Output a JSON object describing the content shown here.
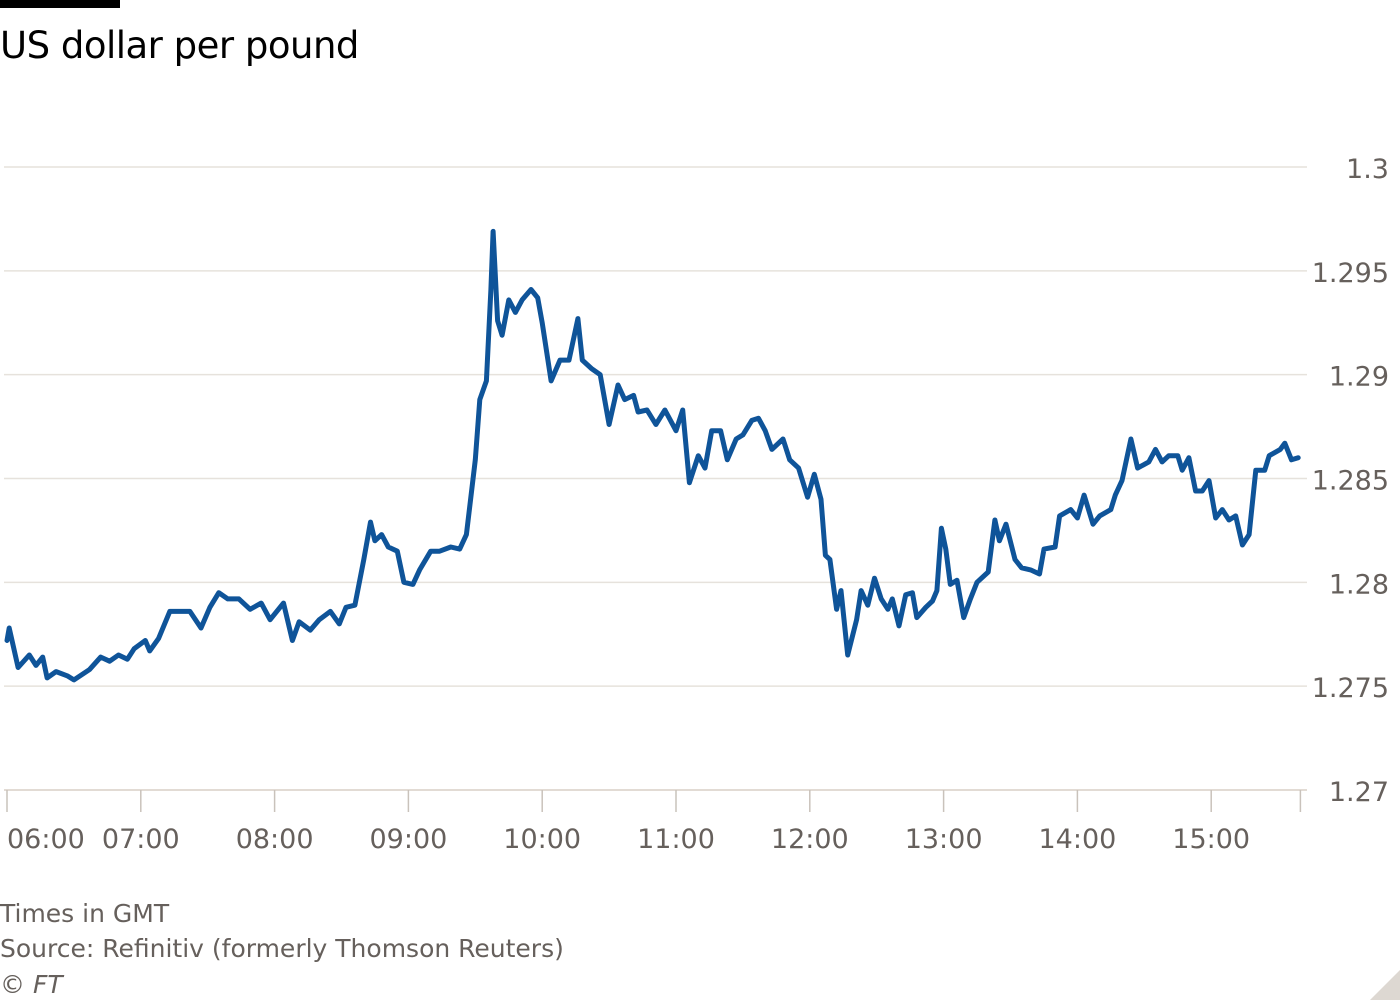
{
  "title": "US dollar per pound",
  "footer": {
    "note": "Times in GMT",
    "source": "Source: Refinitiv (formerly Thomson Reuters)",
    "copyright": "© FT"
  },
  "colors": {
    "line": "#0f5499",
    "grid": "#e6e2dc",
    "text": "#66605c"
  },
  "chart_data": {
    "type": "line",
    "title": "US dollar per pound",
    "xlabel": "Times in GMT",
    "ylabel": "",
    "ylim": [
      1.27,
      1.3
    ],
    "y_ticks": [
      "1.27",
      "1.275",
      "1.28",
      "1.285",
      "1.29",
      "1.295",
      "1.3"
    ],
    "y_tick_values": [
      1.27,
      1.275,
      1.28,
      1.285,
      1.29,
      1.295,
      1.3
    ],
    "x_unit": "minutes after 06:00 GMT",
    "xlim": [
      0,
      580
    ],
    "x_ticks": [
      "06:00",
      "07:00",
      "08:00",
      "09:00",
      "10:00",
      "11:00",
      "12:00",
      "13:00",
      "14:00",
      "15:00"
    ],
    "x_tick_values": [
      0,
      60,
      120,
      180,
      240,
      300,
      360,
      420,
      480,
      540
    ],
    "grid": true,
    "series": [
      {
        "name": "USD per GBP",
        "x": [
          0,
          1,
          5,
          10,
          13,
          16,
          18,
          22,
          27,
          30,
          37,
          42,
          46,
          50,
          54,
          57,
          62,
          64,
          68,
          73,
          78,
          82,
          87,
          91,
          95,
          99,
          104,
          109,
          114,
          118,
          124,
          128,
          131,
          136,
          140,
          145,
          149,
          152,
          156,
          160,
          163,
          165,
          168,
          171,
          175,
          178,
          182,
          185,
          190,
          194,
          199,
          203,
          206,
          210,
          212,
          215,
          217,
          218,
          220,
          222,
          225,
          228,
          231,
          235,
          238,
          240,
          244,
          248,
          252,
          256,
          258,
          262,
          266,
          270,
          274,
          277,
          281,
          283,
          287,
          291,
          295,
          300,
          303,
          306,
          310,
          313,
          316,
          320,
          323,
          327,
          330,
          334,
          337,
          340,
          343,
          348,
          351,
          355,
          359,
          362,
          365,
          367,
          369,
          372,
          374,
          377,
          381,
          383,
          386,
          389,
          392,
          395,
          397,
          400,
          403,
          406,
          408,
          412,
          415,
          417,
          419,
          421,
          423,
          426,
          429,
          432,
          435,
          440,
          443,
          445,
          448,
          452,
          455,
          459,
          463,
          465,
          470,
          472,
          477,
          480,
          483,
          487,
          490,
          495,
          497,
          500,
          504,
          507,
          512,
          515,
          518,
          521,
          525,
          527,
          530,
          533,
          536,
          539,
          542,
          545,
          548,
          551,
          554,
          557,
          560,
          564,
          566,
          571,
          573,
          576,
          579
        ],
        "values": [
          1.2772,
          1.2778,
          1.2759,
          1.2765,
          1.276,
          1.2764,
          1.2754,
          1.2757,
          1.2755,
          1.2753,
          1.2758,
          1.2764,
          1.2762,
          1.2765,
          1.2763,
          1.2768,
          1.2772,
          1.2767,
          1.2773,
          1.2786,
          1.2786,
          1.2786,
          1.2778,
          1.2788,
          1.2795,
          1.2792,
          1.2792,
          1.2787,
          1.279,
          1.2782,
          1.279,
          1.2772,
          1.2781,
          1.2777,
          1.2782,
          1.2786,
          1.278,
          1.2788,
          1.2789,
          1.2811,
          1.2829,
          1.282,
          1.2823,
          1.2817,
          1.2815,
          1.28,
          1.2799,
          1.2806,
          1.2815,
          1.2815,
          1.2817,
          1.2816,
          1.2823,
          1.2859,
          1.2888,
          1.2897,
          1.2941,
          1.2969,
          1.2926,
          1.2919,
          1.2936,
          1.293,
          1.2936,
          1.2941,
          1.2937,
          1.2925,
          1.2897,
          1.2907,
          1.2907,
          1.2927,
          1.2907,
          1.2903,
          1.29,
          1.2876,
          1.2895,
          1.2888,
          1.289,
          1.2882,
          1.2883,
          1.2876,
          1.2883,
          1.2873,
          1.2883,
          1.2848,
          1.2861,
          1.2855,
          1.2873,
          1.2873,
          1.2859,
          1.2869,
          1.2871,
          1.2878,
          1.2879,
          1.2873,
          1.2864,
          1.2869,
          1.2859,
          1.2855,
          1.2841,
          1.2852,
          1.284,
          1.2813,
          1.2811,
          1.2787,
          1.2796,
          1.2765,
          1.2782,
          1.2796,
          1.2789,
          1.2802,
          1.2792,
          1.2787,
          1.2792,
          1.2779,
          1.2794,
          1.2795,
          1.2783,
          1.2788,
          1.2791,
          1.2796,
          1.2826,
          1.2816,
          1.2799,
          1.2801,
          1.2783,
          1.2792,
          1.28,
          1.2805,
          1.283,
          1.282,
          1.2828,
          1.2811,
          1.2807,
          1.2806,
          1.2804,
          1.2816,
          1.2817,
          1.2832,
          1.2835,
          1.2831,
          1.2842,
          1.2828,
          1.2832,
          1.2835,
          1.2842,
          1.2849,
          1.2869,
          1.2855,
          1.2858,
          1.2864,
          1.2858,
          1.2861,
          1.2861,
          1.2854,
          1.286,
          1.2844,
          1.2844,
          1.2849,
          1.2831,
          1.2835,
          1.283,
          1.2832,
          1.2818,
          1.2823,
          1.2854,
          1.2854,
          1.2861,
          1.2864,
          1.2867,
          1.2859,
          1.286
        ]
      }
    ]
  }
}
